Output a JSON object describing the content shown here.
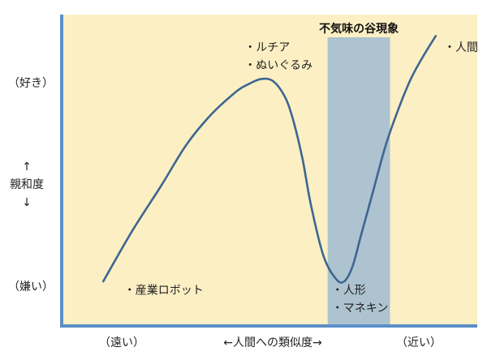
{
  "chart_data": {
    "type": "line",
    "title": "",
    "colors": {
      "background": "#fcefc4",
      "band": "#adc3cf",
      "line": "#3d6691",
      "axis": "#5b8fc7"
    },
    "y_axis": {
      "top_label": "（好き）",
      "arrow_up": "↑",
      "label": "親和度",
      "arrow_down": "↓",
      "bottom_label": "（嫌い）"
    },
    "x_axis": {
      "left_label": "（遠い）",
      "label": "←人間への類似度→",
      "right_label": "（近い）"
    },
    "band": {
      "title": "不気味の谷現象",
      "x_range": [
        0.64,
        0.79
      ]
    },
    "xlim": [
      0,
      1
    ],
    "ylim": [
      0,
      1
    ],
    "series": [
      {
        "x": [
          0.1,
          0.17,
          0.24,
          0.3,
          0.36,
          0.42,
          0.45,
          0.48,
          0.51,
          0.54,
          0.56,
          0.58,
          0.6,
          0.63,
          0.66,
          0.68,
          0.7,
          0.72,
          0.75,
          0.78,
          0.81,
          0.84,
          0.87,
          0.9
        ],
        "y": [
          0.08,
          0.28,
          0.46,
          0.62,
          0.74,
          0.83,
          0.86,
          0.88,
          0.87,
          0.8,
          0.7,
          0.56,
          0.38,
          0.18,
          0.09,
          0.08,
          0.14,
          0.26,
          0.44,
          0.62,
          0.76,
          0.88,
          0.97,
          1.05
        ]
      }
    ],
    "annotations": [
      {
        "text": "・ルチア",
        "x": 0.44,
        "y": 0.99
      },
      {
        "text": "・ぬいぐるみ",
        "x": 0.44,
        "y": 0.92
      },
      {
        "text": "・人間",
        "x": 0.92,
        "y": 0.99
      },
      {
        "text": "・産業ロボット",
        "x": 0.15,
        "y": 0.03
      },
      {
        "text": "・人形",
        "x": 0.65,
        "y": 0.03
      },
      {
        "text": "・マネキン",
        "x": 0.65,
        "y": -0.04
      }
    ]
  }
}
